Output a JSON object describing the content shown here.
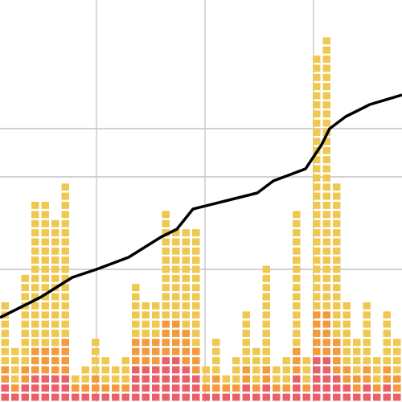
{
  "chart_data": {
    "type": "dot-histogram",
    "categories": [
      null,
      null,
      null,
      null,
      null,
      null,
      null,
      null,
      null,
      null,
      null,
      null,
      null,
      null,
      null,
      null,
      null,
      null,
      null,
      null,
      null,
      null,
      null,
      null,
      null,
      null,
      null,
      null,
      null,
      null,
      null,
      null,
      null,
      null,
      null,
      null,
      null,
      null,
      null,
      null
    ],
    "series": [
      {
        "color": "#e8616a",
        "values": [
          2,
          1,
          2,
          3,
          3,
          3,
          3,
          1,
          1,
          1,
          1,
          1,
          1,
          4,
          4,
          4,
          5,
          5,
          4,
          3,
          1,
          1,
          1,
          1,
          2,
          1,
          2,
          1,
          1,
          3,
          1,
          5,
          5,
          3,
          2,
          1,
          2,
          1,
          2,
          1
        ]
      },
      {
        "color": "#f29a3c",
        "values": [
          2,
          1,
          2,
          3,
          3,
          3,
          4,
          1,
          1,
          2,
          1,
          1,
          1,
          3,
          3,
          3,
          4,
          4,
          4,
          3,
          1,
          2,
          1,
          1,
          2,
          1,
          2,
          1,
          1,
          3,
          1,
          5,
          5,
          4,
          2,
          2,
          2,
          1,
          2,
          2
        ]
      },
      {
        "color": "#efc851",
        "values": [
          7,
          4,
          10,
          16,
          16,
          14,
          17,
          1,
          2,
          4,
          3,
          2,
          3,
          6,
          4,
          4,
          12,
          10,
          11,
          13,
          2,
          4,
          1,
          3,
          6,
          4,
          11,
          2,
          3,
          15,
          3,
          28,
          30,
          17,
          7,
          4,
          7,
          3,
          6,
          4
        ]
      }
    ],
    "ylim": [
      0,
      44
    ],
    "xlim": [
      0,
      40
    ],
    "xticks": [
      9.6,
      20.4,
      31.2
    ],
    "line": {
      "color": "#000000",
      "axis": "y2",
      "x": [
        0,
        4,
        7.2,
        9.6,
        12.8,
        16,
        17.6,
        19.2,
        22.4,
        25.6,
        27.2,
        30.4,
        32,
        32.8,
        34.4,
        36.8,
        40
      ],
      "values": [
        21,
        26,
        31,
        33,
        36,
        41,
        43,
        48,
        50,
        52,
        55,
        58,
        64,
        68,
        71,
        74,
        76.4
      ]
    },
    "y2lim": [
      0,
      100
    ],
    "y2ticks": [
      33,
      56,
      68
    ],
    "grid": true
  }
}
